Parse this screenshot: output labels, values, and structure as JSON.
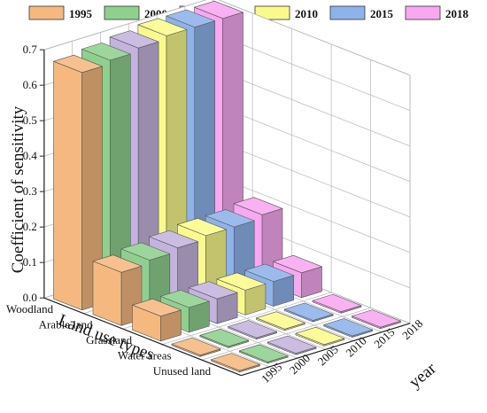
{
  "chart_data": {
    "type": "bar",
    "subtype": "3d-grouped-bar",
    "title": "",
    "ylabel": "Coefficient of sensitivity",
    "xlabel": "Land use types",
    "zlabel": "year",
    "ylim": [
      0,
      0.7
    ],
    "yticks": [
      "0.0",
      "0.1",
      "0.2",
      "0.3",
      "0.4",
      "0.5",
      "0.6",
      "0.7"
    ],
    "categories": [
      "Woodland",
      "Arable land",
      "Grassland",
      "Water areas",
      "Unused land"
    ],
    "legend_position": "top",
    "grid": true,
    "series": [
      {
        "name": "1995",
        "color": "#f5b97f",
        "values": [
          0.67,
          0.15,
          0.07,
          0.002,
          0.002
        ]
      },
      {
        "name": "2000",
        "color": "#8fd08f",
        "values": [
          0.68,
          0.16,
          0.07,
          0.002,
          0.002
        ]
      },
      {
        "name": "2005",
        "color": "#c4b3de",
        "values": [
          0.69,
          0.17,
          0.07,
          0.002,
          0.002
        ]
      },
      {
        "name": "2010",
        "color": "#fafa8c",
        "values": [
          0.7,
          0.18,
          0.07,
          0.002,
          0.002
        ]
      },
      {
        "name": "2015",
        "color": "#8eb2ea",
        "values": [
          0.7,
          0.18,
          0.07,
          0.002,
          0.002
        ]
      },
      {
        "name": "2018",
        "color": "#f7a8f0",
        "values": [
          0.7,
          0.19,
          0.07,
          0.002,
          0.002
        ]
      }
    ]
  }
}
